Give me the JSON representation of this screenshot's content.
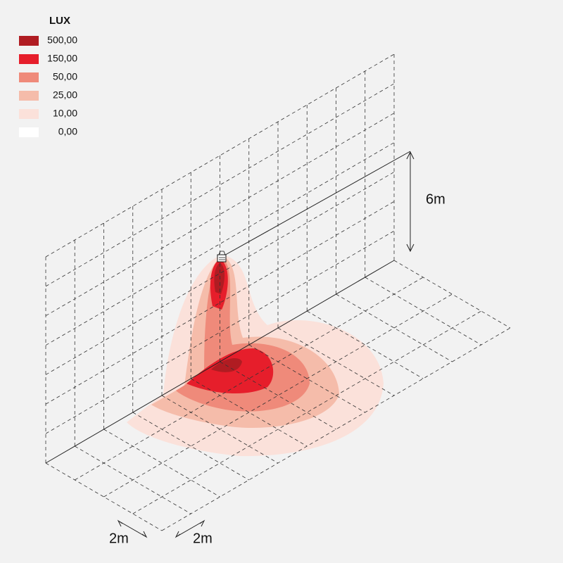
{
  "legend": {
    "title": "LUX",
    "items": [
      {
        "label": "500,00",
        "color": "#b01c22"
      },
      {
        "label": "150,00",
        "color": "#e61e2b"
      },
      {
        "label": "50,00",
        "color": "#ef8a7a"
      },
      {
        "label": "25,00",
        "color": "#f5bcaa"
      },
      {
        "label": "10,00",
        "color": "#fbe1da"
      },
      {
        "label": "0,00",
        "color": "#ffffff"
      }
    ]
  },
  "dimensions": {
    "height": "6m",
    "grid_width": "2m",
    "grid_depth": "2m"
  }
}
